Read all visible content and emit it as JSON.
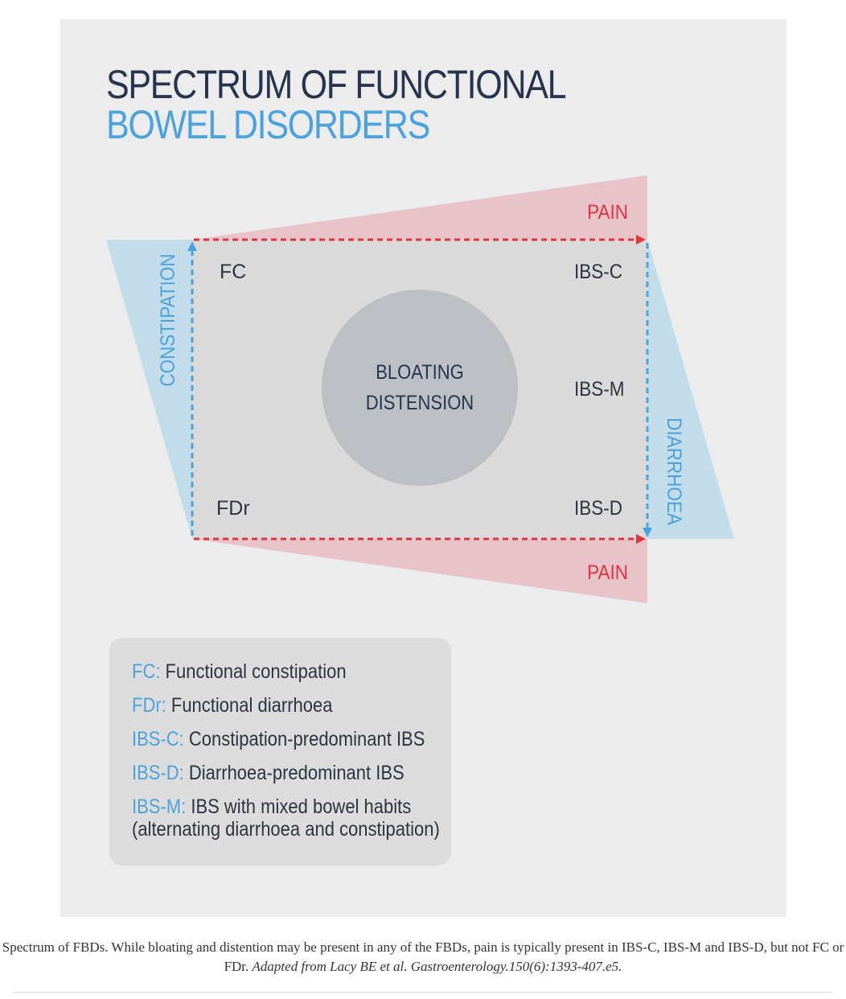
{
  "title": {
    "line1": "SPECTRUM OF FUNCTIONAL",
    "line2": "BOWEL DISORDERS"
  },
  "diagram": {
    "pain_top": "PAIN",
    "pain_bottom": "PAIN",
    "constipation": "CONSTIPATION",
    "diarrhoea": "DIARRHOEA",
    "fc": "FC",
    "fdr": "FDr",
    "ibs_c": "IBS-C",
    "ibs_m": "IBS-M",
    "ibs_d": "IBS-D",
    "center_line1": "BLOATING",
    "center_line2": "DISTENSION"
  },
  "legend": [
    {
      "abbr": "FC:",
      "text": " Functional constipation"
    },
    {
      "abbr": "FDr:",
      "text": " Functional diarrhoea"
    },
    {
      "abbr": "IBS-C:",
      "text": " Constipation-predominant IBS"
    },
    {
      "abbr": "IBS-D:",
      "text": " Diarrhoea-predominant IBS"
    },
    {
      "abbr": "IBS-M:",
      "text": " IBS with mixed bowel habits",
      "text2": "(alternating diarrhoea and constipation)"
    }
  ],
  "caption": {
    "text": "Spectrum of FBDs. While bloating and distention may be present in any of the FBDs, pain is typically present in IBS-C, IBS-M and IBS-D, but not FC or FDr. ",
    "citation": "Adapted from Lacy BE et al. Gastroenterology.150(6):1393-407.e5."
  },
  "colors": {
    "navy": "#26344f",
    "blue": "#4aa3dc",
    "red": "#e0353f",
    "pink_band": "#e8c4ca",
    "blue_band": "#c3dcea",
    "circle": "#bcbfc4",
    "background": "#ececec"
  }
}
